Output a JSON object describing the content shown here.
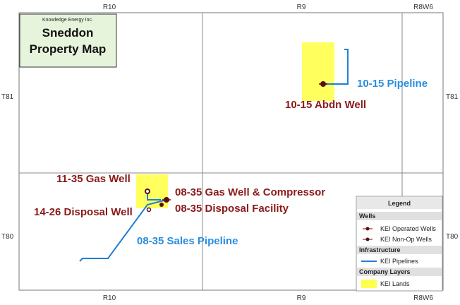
{
  "grid_labels": {
    "top": [
      "R10",
      "R9",
      "R8W6"
    ],
    "bottom": [
      "R10",
      "R9",
      "R8W6"
    ],
    "left": [
      "T81",
      "T80"
    ],
    "right": [
      "T81",
      "T80"
    ]
  },
  "title_box": {
    "company": "Knowledge Energy Inc.",
    "title": "Sneddon Property Map"
  },
  "map_labels": {
    "well_1015": "10-15 Abdn Well",
    "pipeline_1015": "10-15 Pipeline",
    "well_1135": "11-35 Gas Well",
    "well_0835": "08-35 Gas Well & Compressor",
    "facility_0835": "08-35 Disposal Facility",
    "well_1426": "14-26 Disposal Well",
    "pipeline_0835": "08-35 Sales Pipeline"
  },
  "legend": {
    "title": "Legend",
    "sections": [
      {
        "heading": "Wells",
        "items": [
          "KEI Operated Wells",
          "KEI Non-Op Wells"
        ]
      },
      {
        "heading": "Infrastructure",
        "items": [
          "KEI Pipelines"
        ]
      },
      {
        "heading": "Company Layers",
        "items": [
          "KEI Lands"
        ]
      }
    ]
  }
}
